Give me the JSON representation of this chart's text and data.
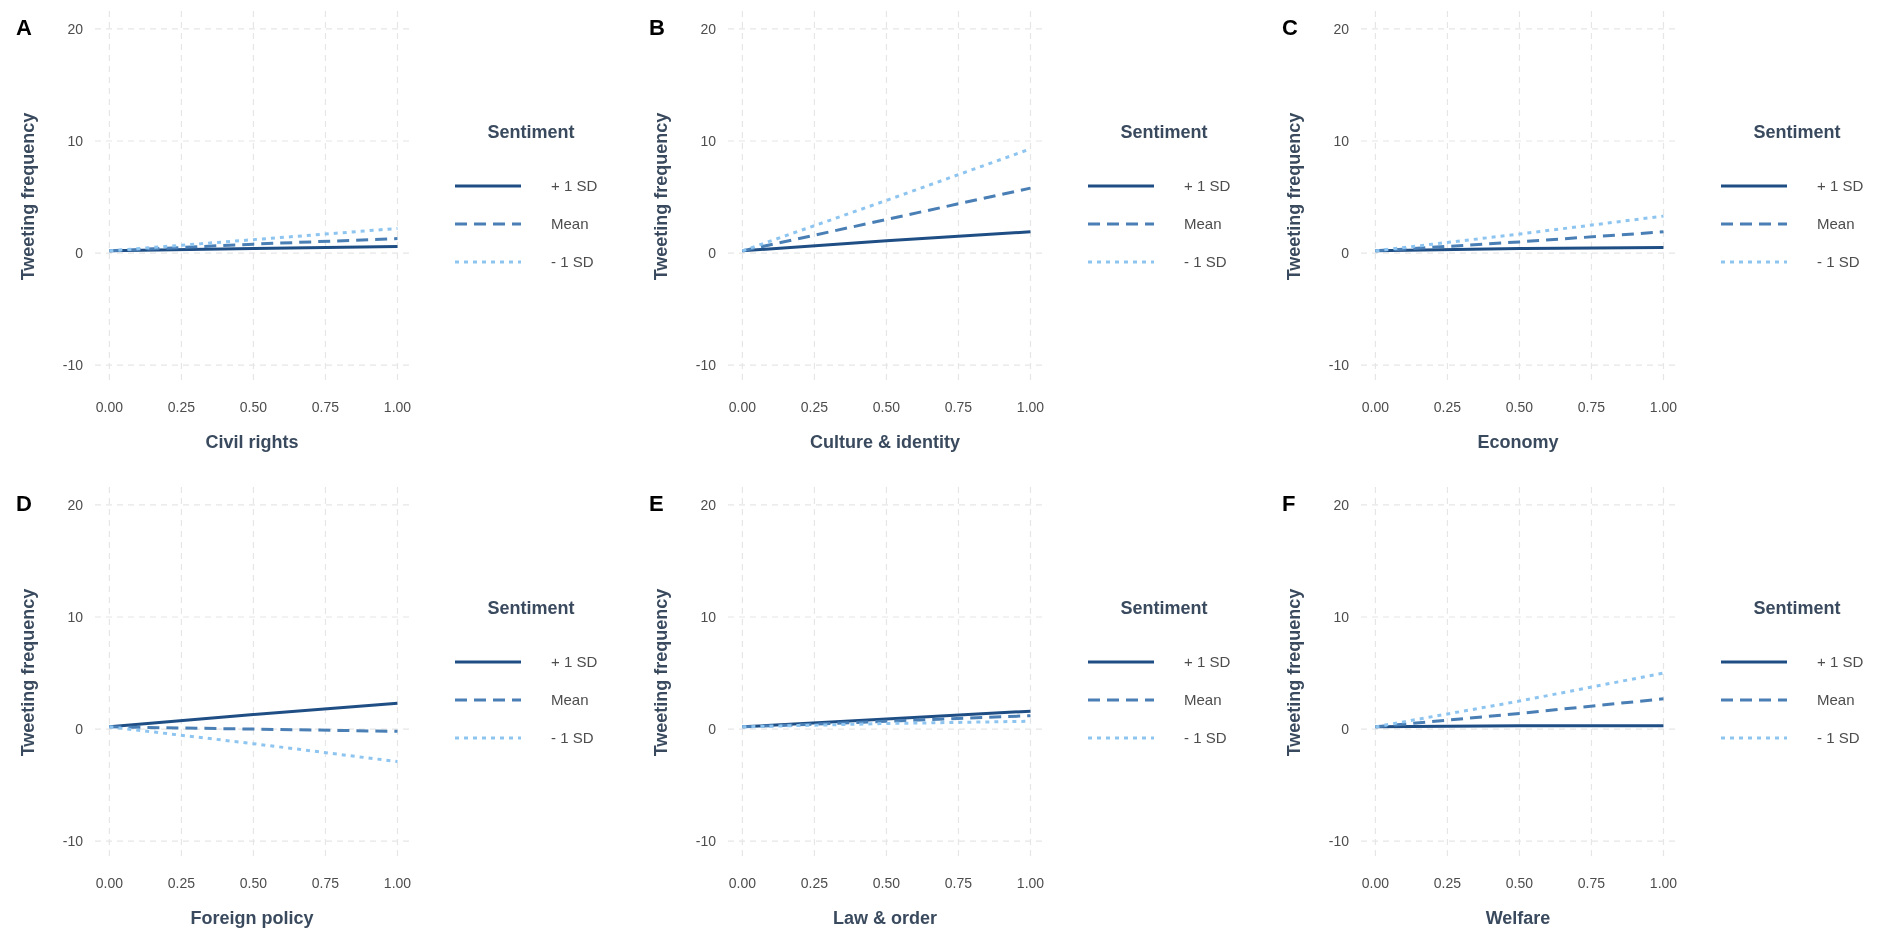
{
  "chart_data": [
    {
      "type": "line",
      "title": "A",
      "xlabel": "Civil rights",
      "ylabel": "Tweeting frequency",
      "legend_title": "Sentiment",
      "legend": "right",
      "grid": true,
      "xlim": [
        -0.05,
        1.04
      ],
      "ylim": [
        -11.5,
        21.6
      ],
      "xticks": [
        {
          "value": 0,
          "label": "0.00"
        },
        {
          "value": 0.25,
          "label": "0.25"
        },
        {
          "value": 0.5,
          "label": "0.50"
        },
        {
          "value": 0.75,
          "label": "0.75"
        },
        {
          "value": 1,
          "label": "1.00"
        }
      ],
      "yticks": [
        -10,
        0,
        10,
        20
      ],
      "x": [
        0,
        0.5,
        1
      ],
      "series": [
        {
          "name": "+ 1 SD",
          "color": "#1f4e85",
          "line_style": "solid",
          "values": [
            0.2,
            0.4,
            0.6
          ]
        },
        {
          "name": "Mean",
          "color": "#4a7fb5",
          "line_style": "dashed",
          "values": [
            0.2,
            0.8,
            1.3
          ]
        },
        {
          "name": "- 1 SD",
          "color": "#8ec5f0",
          "line_style": "dotted",
          "values": [
            0.2,
            1.2,
            2.2
          ]
        }
      ]
    },
    {
      "type": "line",
      "title": "B",
      "xlabel": "Culture & identity",
      "ylabel": "Tweeting frequency",
      "legend_title": "Sentiment",
      "legend": "right",
      "grid": true,
      "xlim": [
        -0.05,
        1.04
      ],
      "ylim": [
        -11.5,
        21.6
      ],
      "xticks": [
        {
          "value": 0,
          "label": "0.00"
        },
        {
          "value": 0.25,
          "label": "0.25"
        },
        {
          "value": 0.5,
          "label": "0.50"
        },
        {
          "value": 0.75,
          "label": "0.75"
        },
        {
          "value": 1,
          "label": "1.00"
        }
      ],
      "yticks": [
        -10,
        0,
        10,
        20
      ],
      "x": [
        0,
        0.5,
        1
      ],
      "series": [
        {
          "name": "+ 1 SD",
          "color": "#1f4e85",
          "line_style": "solid",
          "values": [
            0.2,
            1.1,
            1.9
          ]
        },
        {
          "name": "Mean",
          "color": "#4a7fb5",
          "line_style": "dashed",
          "values": [
            0.2,
            3.0,
            5.8
          ]
        },
        {
          "name": "- 1 SD",
          "color": "#8ec5f0",
          "line_style": "dotted",
          "values": [
            0.2,
            4.7,
            9.3
          ]
        }
      ]
    },
    {
      "type": "line",
      "title": "C",
      "xlabel": "Economy",
      "ylabel": "Tweeting frequency",
      "legend_title": "Sentiment",
      "legend": "right",
      "grid": true,
      "xlim": [
        -0.05,
        1.04
      ],
      "ylim": [
        -11.5,
        21.6
      ],
      "xticks": [
        {
          "value": 0,
          "label": "0.00"
        },
        {
          "value": 0.25,
          "label": "0.25"
        },
        {
          "value": 0.5,
          "label": "0.50"
        },
        {
          "value": 0.75,
          "label": "0.75"
        },
        {
          "value": 1,
          "label": "1.00"
        }
      ],
      "yticks": [
        -10,
        0,
        10,
        20
      ],
      "x": [
        0,
        0.5,
        1
      ],
      "series": [
        {
          "name": "+ 1 SD",
          "color": "#1f4e85",
          "line_style": "solid",
          "values": [
            0.2,
            0.4,
            0.5
          ]
        },
        {
          "name": "Mean",
          "color": "#4a7fb5",
          "line_style": "dashed",
          "values": [
            0.2,
            1.0,
            1.9
          ]
        },
        {
          "name": "- 1 SD",
          "color": "#8ec5f0",
          "line_style": "dotted",
          "values": [
            0.2,
            1.7,
            3.3
          ]
        }
      ]
    },
    {
      "type": "line",
      "title": "D",
      "xlabel": "Foreign policy",
      "ylabel": "Tweeting frequency",
      "legend_title": "Sentiment",
      "legend": "right",
      "grid": true,
      "xlim": [
        -0.05,
        1.04
      ],
      "ylim": [
        -11.5,
        21.6
      ],
      "xticks": [
        {
          "value": 0,
          "label": "0.00"
        },
        {
          "value": 0.25,
          "label": "0.25"
        },
        {
          "value": 0.5,
          "label": "0.50"
        },
        {
          "value": 0.75,
          "label": "0.75"
        },
        {
          "value": 1,
          "label": "1.00"
        }
      ],
      "yticks": [
        -10,
        0,
        10,
        20
      ],
      "x": [
        0,
        0.5,
        1
      ],
      "series": [
        {
          "name": "+ 1 SD",
          "color": "#1f4e85",
          "line_style": "solid",
          "values": [
            0.2,
            1.3,
            2.3
          ]
        },
        {
          "name": "Mean",
          "color": "#4a7fb5",
          "line_style": "dashed",
          "values": [
            0.2,
            0.0,
            -0.2
          ]
        },
        {
          "name": "- 1 SD",
          "color": "#8ec5f0",
          "line_style": "dotted",
          "values": [
            0.2,
            -1.3,
            -2.9
          ]
        }
      ]
    },
    {
      "type": "line",
      "title": "E",
      "xlabel": "Law & order",
      "ylabel": "Tweeting frequency",
      "legend_title": "Sentiment",
      "legend": "right",
      "grid": true,
      "xlim": [
        -0.05,
        1.04
      ],
      "ylim": [
        -11.5,
        21.6
      ],
      "xticks": [
        {
          "value": 0,
          "label": "0.00"
        },
        {
          "value": 0.25,
          "label": "0.25"
        },
        {
          "value": 0.5,
          "label": "0.50"
        },
        {
          "value": 0.75,
          "label": "0.75"
        },
        {
          "value": 1,
          "label": "1.00"
        }
      ],
      "yticks": [
        -10,
        0,
        10,
        20
      ],
      "x": [
        0,
        0.5,
        1
      ],
      "series": [
        {
          "name": "+ 1 SD",
          "color": "#1f4e85",
          "line_style": "solid",
          "values": [
            0.2,
            0.9,
            1.6
          ]
        },
        {
          "name": "Mean",
          "color": "#4a7fb5",
          "line_style": "dashed",
          "values": [
            0.2,
            0.7,
            1.2
          ]
        },
        {
          "name": "- 1 SD",
          "color": "#8ec5f0",
          "line_style": "dotted",
          "values": [
            0.2,
            0.5,
            0.7
          ]
        }
      ]
    },
    {
      "type": "line",
      "title": "F",
      "xlabel": "Welfare",
      "ylabel": "Tweeting frequency",
      "legend_title": "Sentiment",
      "legend": "right",
      "grid": true,
      "xlim": [
        -0.05,
        1.04
      ],
      "ylim": [
        -11.5,
        21.6
      ],
      "xticks": [
        {
          "value": 0,
          "label": "0.00"
        },
        {
          "value": 0.25,
          "label": "0.25"
        },
        {
          "value": 0.5,
          "label": "0.50"
        },
        {
          "value": 0.75,
          "label": "0.75"
        },
        {
          "value": 1,
          "label": "1.00"
        }
      ],
      "yticks": [
        -10,
        0,
        10,
        20
      ],
      "x": [
        0,
        0.5,
        1
      ],
      "series": [
        {
          "name": "+ 1 SD",
          "color": "#1f4e85",
          "line_style": "solid",
          "values": [
            0.2,
            0.3,
            0.3
          ]
        },
        {
          "name": "Mean",
          "color": "#4a7fb5",
          "line_style": "dashed",
          "values": [
            0.2,
            1.4,
            2.7
          ]
        },
        {
          "name": "- 1 SD",
          "color": "#8ec5f0",
          "line_style": "dotted",
          "values": [
            0.2,
            2.5,
            5.0
          ]
        }
      ]
    }
  ]
}
